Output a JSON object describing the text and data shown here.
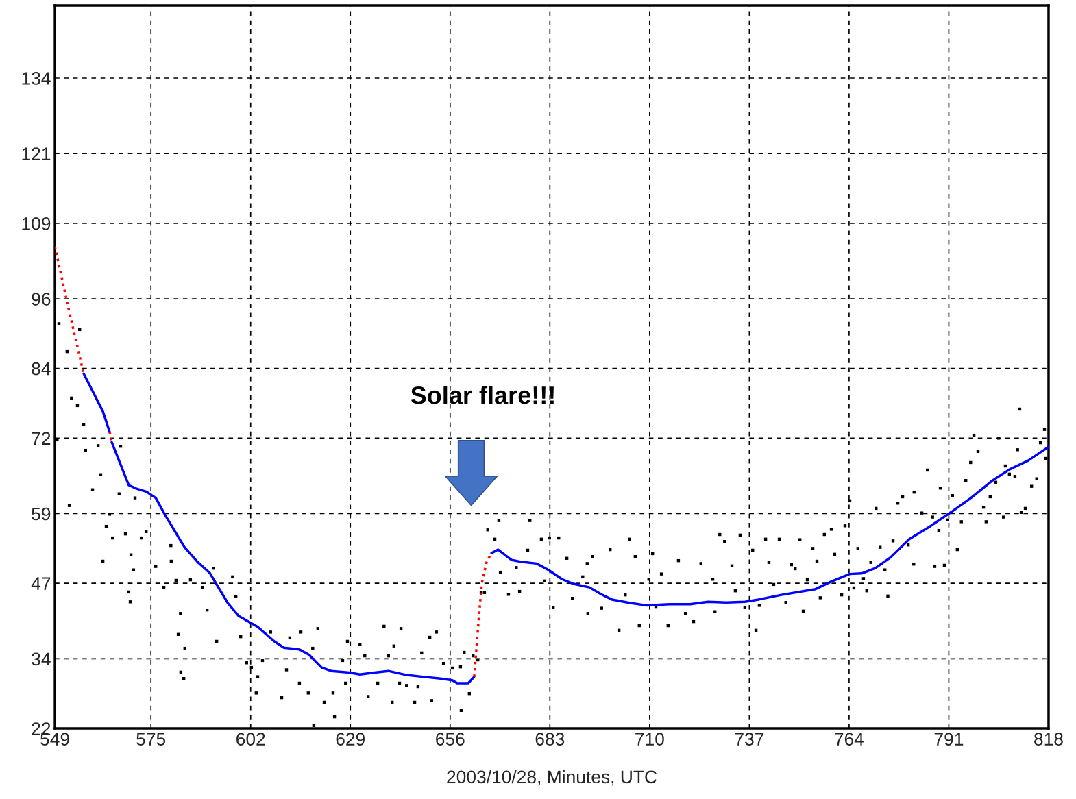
{
  "chart_data": {
    "type": "line",
    "xlabel": "2003/10/28, Minutes, UTC",
    "xlim": [
      549,
      818
    ],
    "xticks": [
      549,
      575,
      602,
      629,
      656,
      683,
      710,
      737,
      764,
      791,
      818
    ],
    "ylim": [
      22,
      146.5
    ],
    "yticks": [
      22,
      34,
      47,
      59,
      72,
      84,
      96,
      109,
      121,
      134
    ],
    "grid": true,
    "annotations": [
      "Solar flare!!!"
    ],
    "series": [
      {
        "type": "scatter",
        "color": "#000000",
        "marker": "square",
        "x": [
          550.1,
          552.3,
          555.7,
          553.5,
          555.1,
          556.8,
          549.6,
          557.3,
          560.7,
          566.8,
          561.4,
          559.2,
          552.9,
          566.4,
          570.7,
          563.8,
          562.9,
          564.6,
          568.1,
          573.7,
          572.4,
          569.6,
          562.0,
          570.3,
          576.3,
          580.5,
          580.4,
          569.0,
          569.4,
          578.5,
          581.8,
          585.7,
          588.9,
          591.9,
          583.0,
          582.4,
          584.2,
          590.2,
          592.8,
          597.1,
          598.0,
          599.3,
          583.1,
          583.9,
          600.9,
          602.2,
          603.9,
          603.5,
          605.2,
          607.4,
          610.4,
          611.7,
          612.6,
          615.2,
          615.6,
          617.6,
          618.8,
          620.2,
          621.9,
          624.3,
          624.7,
          626.9,
          627.7,
          628.2,
          631.6,
          633.8,
          632.9,
          636.4,
          638.1,
          640.3,
          619.1,
          640.8,
          642.7,
          639.3,
          642.3,
          644.2,
          646.4,
          647.3,
          648.3,
          650.5,
          652.3,
          651.0,
          654.2,
          656.6,
          658.8,
          659.8,
          659.0,
          661.2,
          662.2,
          663.5,
          664.4,
          665.3,
          666.2,
          668.1,
          669.2,
          669.6,
          671.8,
          673.9,
          674.8,
          677.6,
          677.0,
          680.7,
          681.6,
          682.9,
          685.4,
          683.9,
          687.6,
          689.1,
          691.9,
          693.1,
          693.3,
          694.6,
          697.0,
          699.3,
          701.7,
          703.4,
          704.5,
          706.1,
          707.2,
          709.8,
          710.8,
          711.7,
          713.2,
          715.0,
          717.8,
          719.7,
          721.9,
          723.9,
          727.1,
          727.7,
          729.0,
          730.3,
          732.3,
          733.2,
          734.5,
          735.8,
          737.9,
          738.8,
          739.7,
          741.4,
          742.3,
          743.6,
          745.1,
          746.9,
          748.4,
          749.4,
          750.7,
          751.6,
          752.7,
          754.2,
          755.3,
          756.2,
          757.3,
          759.2,
          760.1,
          762.0,
          762.9,
          764.2,
          765.3,
          766.4,
          767.9,
          768.8,
          769.9,
          771.3,
          772.4,
          773.7,
          774.5,
          775.9,
          777.2,
          778.5,
          780.0,
          781.5,
          781.6,
          783.7,
          785.2,
          786.6,
          787.2,
          788.3,
          788.7,
          789.8,
          790.7,
          792.0,
          793.3,
          794.4,
          795.6,
          796.9,
          797.8,
          798.9,
          800.4,
          801.1,
          802.2,
          803.7,
          804.5,
          805.8,
          806.3,
          807.4,
          808.9,
          809.6,
          810.2,
          810.6,
          811.7,
          813.4,
          814.8,
          815.8,
          816.9,
          817.3
        ],
        "values": [
          91.7,
          86.9,
          90.7,
          78.9,
          77.6,
          74.3,
          71.7,
          69.9,
          70.7,
          70.6,
          65.7,
          63.1,
          60.4,
          62.4,
          61.7,
          58.9,
          56.8,
          54.8,
          55.5,
          55.9,
          54.8,
          51.9,
          50.8,
          49.3,
          49.9,
          50.8,
          53.5,
          45.5,
          43.8,
          46.3,
          47.5,
          47.6,
          46.3,
          49.6,
          41.8,
          38.2,
          35.8,
          42.4,
          37.0,
          48.1,
          44.7,
          37.8,
          31.7,
          30.6,
          33.3,
          32.5,
          30.9,
          28.1,
          33.7,
          38.6,
          27.3,
          32.1,
          37.6,
          29.8,
          38.6,
          28.1,
          35.8,
          39.2,
          26.5,
          28.1,
          24.0,
          33.7,
          29.8,
          37.0,
          36.5,
          27.5,
          34.5,
          29.8,
          39.6,
          26.5,
          22.5,
          36.2,
          39.2,
          34.5,
          29.8,
          29.4,
          26.5,
          29.2,
          35.0,
          37.7,
          38.6,
          26.8,
          33.2,
          32.4,
          32.6,
          35.1,
          25.1,
          28.0,
          34.5,
          33.8,
          45.4,
          45.4,
          56.2,
          54.6,
          57.8,
          48.9,
          45.1,
          49.7,
          45.6,
          57.8,
          52.7,
          54.6,
          47.4,
          54.8,
          54.8,
          42.8,
          51.3,
          44.4,
          48.1,
          50.4,
          41.8,
          51.6,
          42.7,
          52.8,
          38.9,
          45.0,
          54.6,
          51.6,
          39.7,
          47.7,
          52.1,
          43.0,
          48.6,
          39.7,
          50.9,
          41.8,
          40.4,
          50.4,
          47.7,
          42.1,
          55.4,
          54.2,
          50.0,
          45.7,
          55.3,
          42.8,
          52.7,
          38.9,
          43.2,
          54.6,
          50.6,
          46.8,
          54.6,
          43.7,
          50.2,
          49.5,
          54.5,
          42.2,
          47.6,
          53.0,
          50.8,
          44.5,
          55.4,
          56.3,
          52.0,
          45.0,
          56.9,
          61.2,
          46.2,
          53.0,
          47.8,
          45.7,
          50.6,
          59.9,
          53.2,
          49.3,
          44.8,
          54.3,
          60.8,
          61.9,
          53.6,
          50.3,
          62.7,
          59.1,
          66.5,
          58.4,
          49.9,
          56.1,
          63.4,
          50.1,
          57.9,
          62.1,
          52.8,
          57.6,
          64.7,
          67.8,
          72.5,
          69.7,
          60.1,
          57.6,
          61.9,
          64.4,
          72.0,
          58.4,
          67.2,
          65.8,
          65.4,
          70.0,
          77.0,
          59.2,
          59.9,
          63.7,
          65.0,
          71.2,
          73.5,
          68.5
        ]
      },
      {
        "color": "#ff0000",
        "line_style": "dotted",
        "x": [
          549,
          552.7,
          556.8
        ],
        "values": [
          105.0,
          94.3,
          83.1
        ]
      },
      {
        "color": "#0000ff",
        "line_style": "solid",
        "x": [
          556.8,
          562.0,
          563.8
        ],
        "values": [
          83.1,
          76.6,
          73.1
        ]
      },
      {
        "color": "#ff0000",
        "line_style": "dotted",
        "x": [
          563.8,
          564.4
        ],
        "values": [
          73.1,
          71.3
        ]
      },
      {
        "color": "#0000ff",
        "line_style": "solid",
        "x": [
          564.4,
          569.0,
          571.1,
          573.7,
          576.3,
          578.9,
          584.1,
          587.6,
          590.9,
          595.8,
          598.7,
          603.9,
          608.4,
          611.0,
          615.2,
          617.8,
          621.2,
          623.8,
          629.0,
          631.6,
          635.1,
          639.3,
          644.2,
          648.6,
          653.4,
          656.6,
          657.9,
          660.9,
          662.5
        ],
        "values": [
          71.3,
          63.9,
          63.3,
          62.8,
          61.7,
          58.7,
          53.2,
          50.7,
          48.8,
          43.6,
          41.4,
          39.5,
          37.0,
          35.9,
          35.6,
          34.7,
          32.5,
          31.9,
          31.6,
          31.3,
          31.6,
          31.9,
          31.2,
          30.9,
          30.6,
          30.3,
          29.8,
          29.8,
          30.9
        ]
      },
      {
        "color": "#ff0000",
        "line_style": "dotted",
        "x": [
          662.5,
          662.7,
          663.7,
          664.6,
          665.9,
          667.2
        ],
        "values": [
          30.9,
          32.4,
          40.6,
          47.1,
          50.7,
          52.2
        ]
      },
      {
        "color": "#0000ff",
        "line_style": "solid",
        "x": [
          667.2,
          669.0,
          671.4,
          672.7,
          675.2,
          679.4,
          682.6,
          686.3,
          689.4,
          693.7,
          696.9,
          699.8,
          704.8,
          709.1,
          715.4,
          721.0,
          725.8,
          730.8,
          735.8,
          739.5,
          745.7,
          754.9,
          759.2,
          764.2,
          767.4,
          771.1,
          775.3,
          780.3,
          785.9,
          791.5,
          797.0,
          802.6,
          807.4,
          812.4,
          818.0
        ],
        "values": [
          52.2,
          52.8,
          51.6,
          51.0,
          50.7,
          50.4,
          49.3,
          47.7,
          46.9,
          46.3,
          45.1,
          44.2,
          43.6,
          43.2,
          43.4,
          43.4,
          43.8,
          43.7,
          43.8,
          44.2,
          45.0,
          46.0,
          47.3,
          48.6,
          48.7,
          49.6,
          51.5,
          54.6,
          56.8,
          59.2,
          61.7,
          64.6,
          66.6,
          68.1,
          70.5
        ]
      }
    ]
  }
}
